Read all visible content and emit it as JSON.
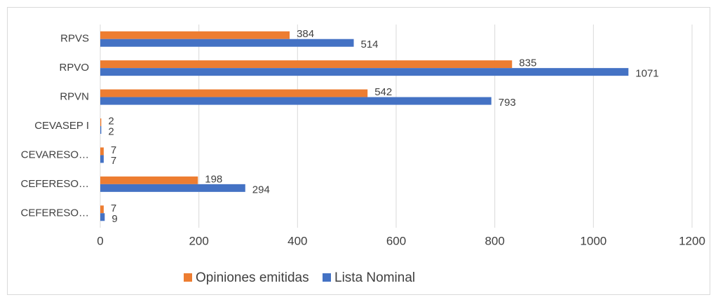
{
  "chart_data": {
    "type": "bar",
    "orientation": "horizontal",
    "categories": [
      "RPVS",
      "RPVO",
      "RPVN",
      "CEVASEP I",
      "CEVARESO…",
      "CEFERESO…",
      "CEFERESO…"
    ],
    "series": [
      {
        "name": "Opiniones emitidas",
        "color": "#ED7D31",
        "values": [
          384,
          835,
          542,
          2,
          7,
          198,
          7
        ]
      },
      {
        "name": "Lista Nominal",
        "color": "#4472C4",
        "values": [
          514,
          1071,
          793,
          2,
          7,
          294,
          9
        ]
      }
    ],
    "xlim": [
      0,
      1200
    ],
    "xticks": [
      0,
      200,
      400,
      600,
      800,
      1000,
      1200
    ],
    "grid": true,
    "legend": "bottom"
  }
}
